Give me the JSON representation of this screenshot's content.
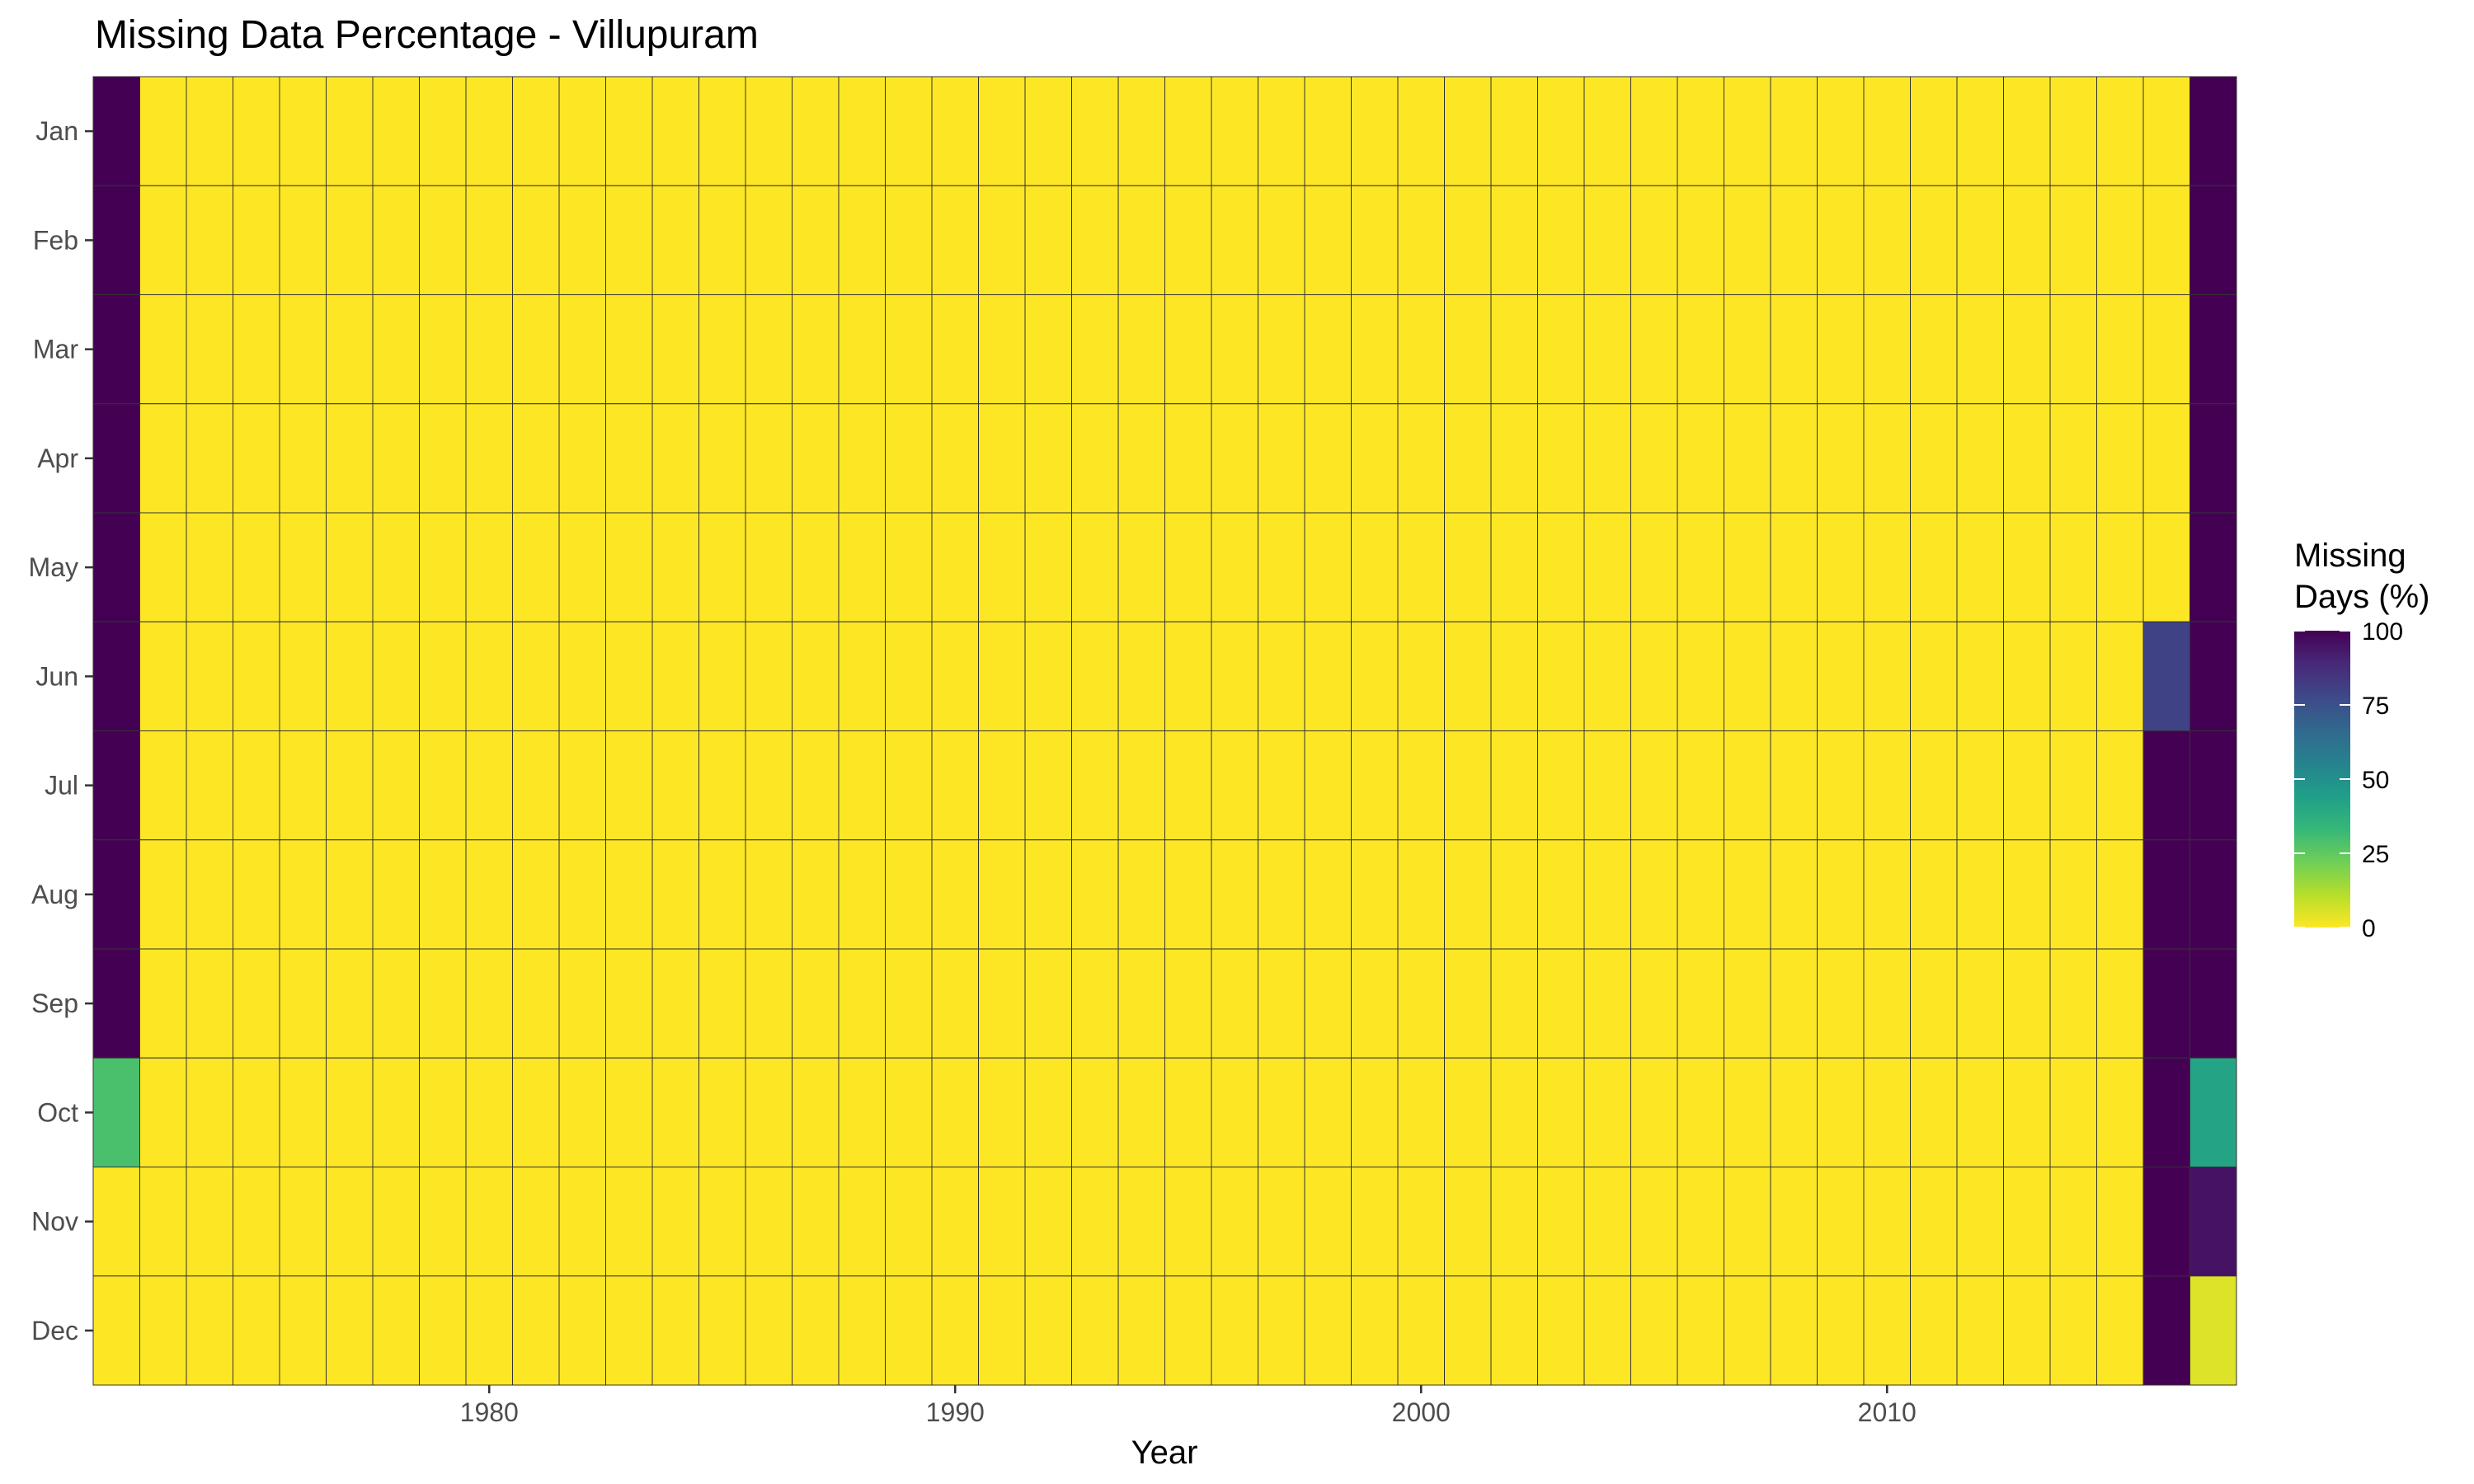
{
  "chart_data": {
    "type": "heatmap",
    "title": "Missing Data Percentage - Villupuram",
    "xlabel": "Year",
    "ylabel": "",
    "x_ticks": [
      1980,
      1990,
      2000,
      2010
    ],
    "year_range": [
      1972,
      2017
    ],
    "months": [
      "Jan",
      "Feb",
      "Mar",
      "Apr",
      "May",
      "Jun",
      "Jul",
      "Aug",
      "Sep",
      "Oct",
      "Nov",
      "Dec"
    ],
    "default_value": 0,
    "overrides": [
      {
        "year": 1972,
        "month": "Jan",
        "value": 100
      },
      {
        "year": 1972,
        "month": "Feb",
        "value": 100
      },
      {
        "year": 1972,
        "month": "Mar",
        "value": 100
      },
      {
        "year": 1972,
        "month": "Apr",
        "value": 100
      },
      {
        "year": 1972,
        "month": "May",
        "value": 100
      },
      {
        "year": 1972,
        "month": "Jun",
        "value": 100
      },
      {
        "year": 1972,
        "month": "Jul",
        "value": 100
      },
      {
        "year": 1972,
        "month": "Aug",
        "value": 100
      },
      {
        "year": 1972,
        "month": "Sep",
        "value": 100
      },
      {
        "year": 1972,
        "month": "Oct",
        "value": 29
      },
      {
        "year": 2016,
        "month": "Jun",
        "value": 80
      },
      {
        "year": 2016,
        "month": "Jul",
        "value": 100
      },
      {
        "year": 2016,
        "month": "Aug",
        "value": 100
      },
      {
        "year": 2016,
        "month": "Sep",
        "value": 100
      },
      {
        "year": 2016,
        "month": "Oct",
        "value": 100
      },
      {
        "year": 2016,
        "month": "Nov",
        "value": 100
      },
      {
        "year": 2016,
        "month": "Dec",
        "value": 100
      },
      {
        "year": 2017,
        "month": "Jan",
        "value": 100
      },
      {
        "year": 2017,
        "month": "Feb",
        "value": 100
      },
      {
        "year": 2017,
        "month": "Mar",
        "value": 100
      },
      {
        "year": 2017,
        "month": "Apr",
        "value": 100
      },
      {
        "year": 2017,
        "month": "May",
        "value": 100
      },
      {
        "year": 2017,
        "month": "Jun",
        "value": 100
      },
      {
        "year": 2017,
        "month": "Jul",
        "value": 100
      },
      {
        "year": 2017,
        "month": "Aug",
        "value": 100
      },
      {
        "year": 2017,
        "month": "Sep",
        "value": 100
      },
      {
        "year": 2017,
        "month": "Oct",
        "value": 42
      },
      {
        "year": 2017,
        "month": "Nov",
        "value": 95
      },
      {
        "year": 2017,
        "month": "Dec",
        "value": 5
      }
    ],
    "color_scale": {
      "name": "viridis-reversed",
      "range": [
        0,
        100
      ],
      "stops": [
        "#fde725",
        "#b5de2b",
        "#6ece58",
        "#35b779",
        "#1f9e89",
        "#26828e",
        "#31688e",
        "#3e4989",
        "#482878",
        "#440154"
      ]
    },
    "legend": {
      "title_lines": [
        "Missing",
        "Days (%)"
      ],
      "ticks": [
        100,
        75,
        50,
        25,
        0
      ],
      "position": "right"
    },
    "grid": false
  }
}
